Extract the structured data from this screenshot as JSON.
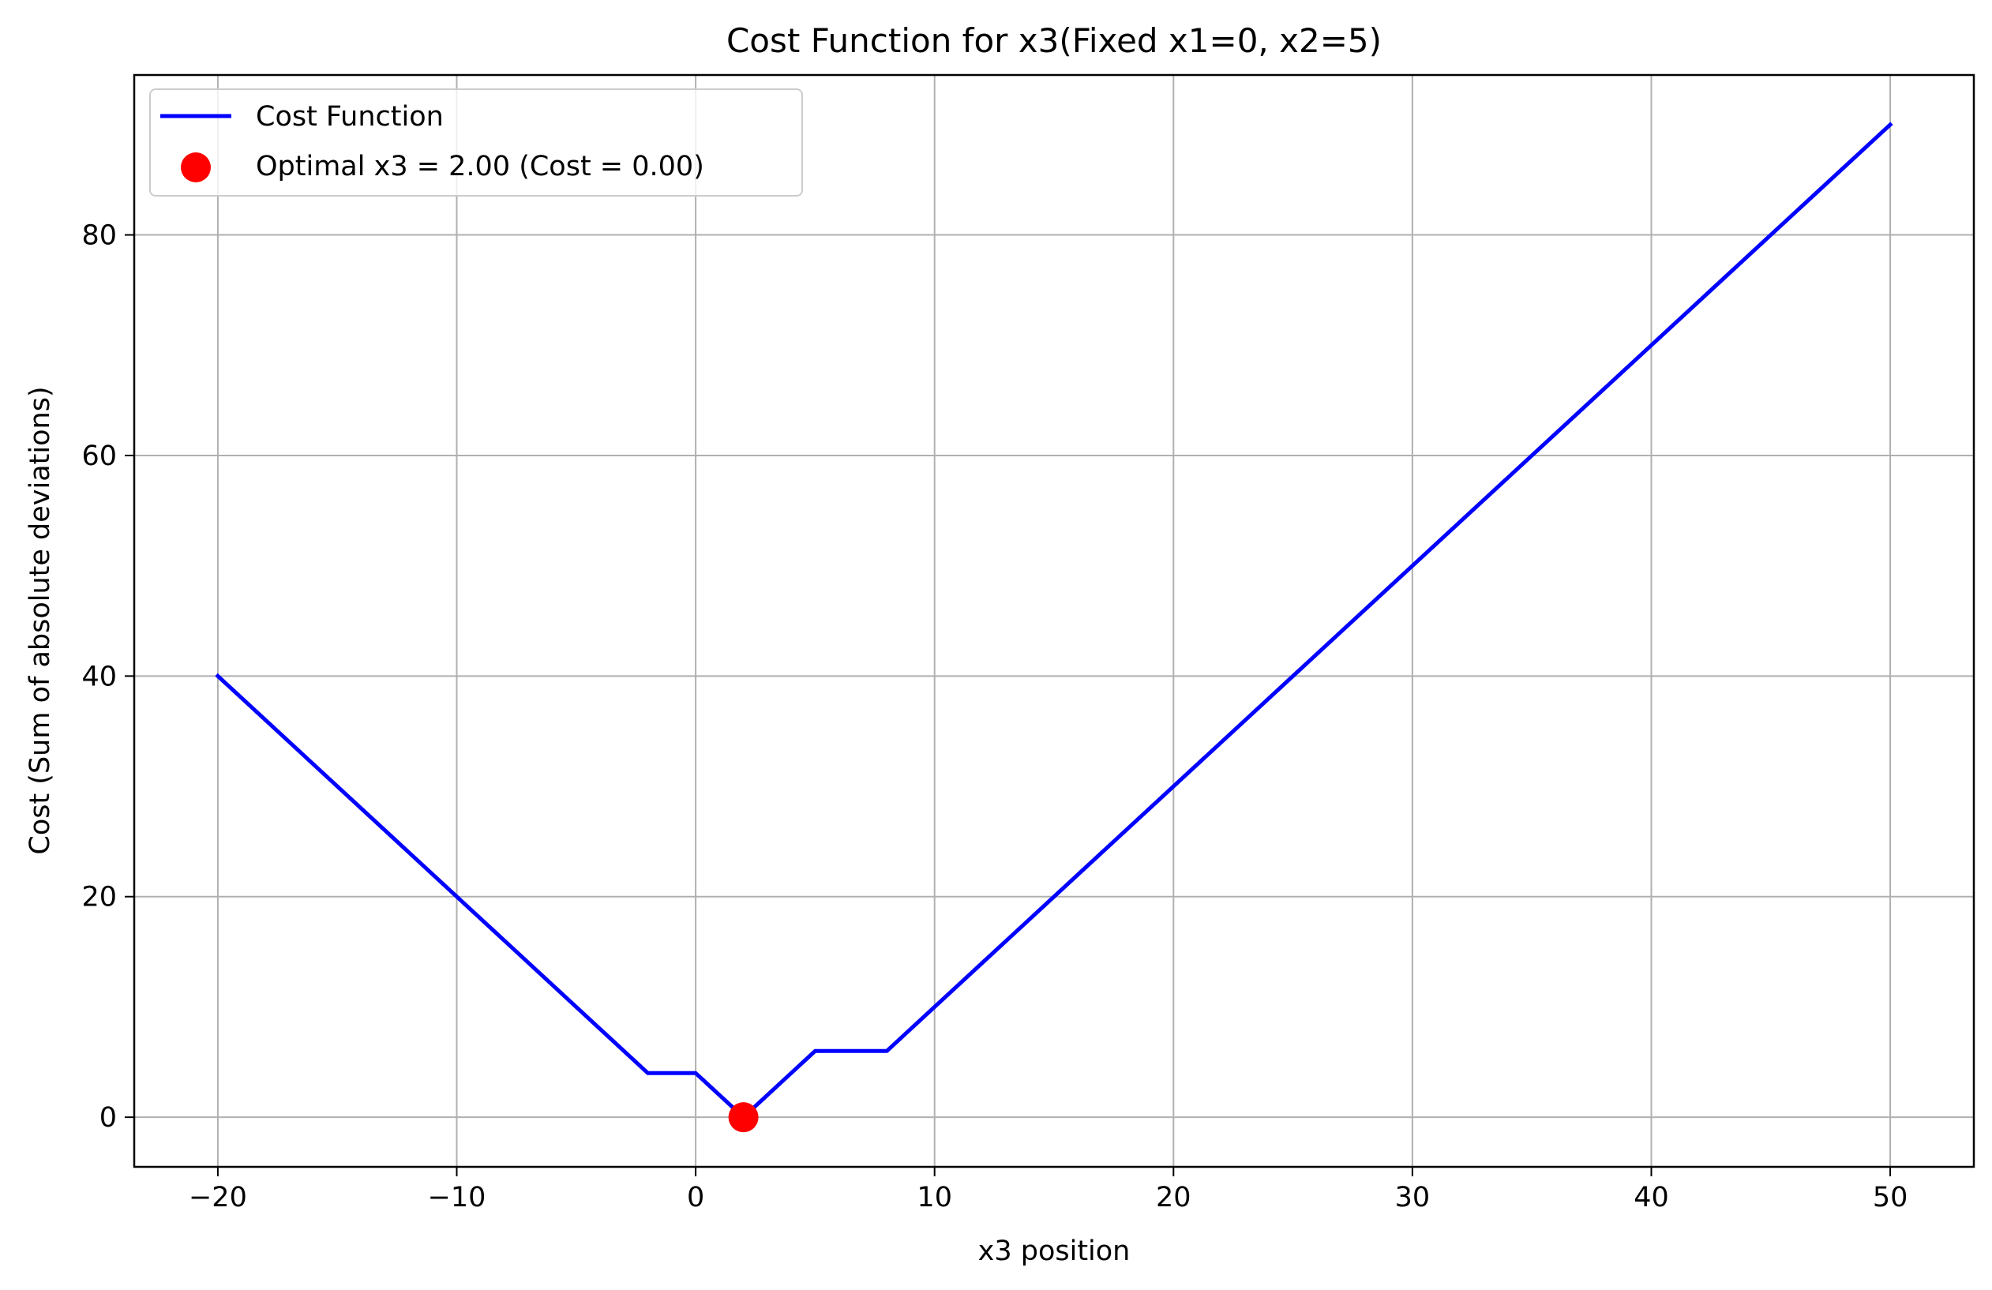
{
  "chart_data": {
    "type": "line",
    "title": "Cost Function for x3(Fixed x1=0, x2=5)",
    "xlabel": "x3 position",
    "ylabel": "Cost (Sum of absolute deviations)",
    "xlim": [
      -23.5,
      53.5
    ],
    "ylim": [
      -4.5,
      94.5
    ],
    "x_ticks": [
      -20,
      -10,
      0,
      10,
      20,
      30,
      40,
      50
    ],
    "x_tick_labels": [
      "−20",
      "−10",
      "0",
      "10",
      "20",
      "30",
      "40",
      "50"
    ],
    "y_ticks": [
      0,
      20,
      40,
      60,
      80
    ],
    "y_tick_labels": [
      "0",
      "20",
      "40",
      "60",
      "80"
    ],
    "grid": true,
    "legend_position": "top-left",
    "series": [
      {
        "name": "Cost Function",
        "color": "#0000ff",
        "x": [
          -20,
          -2,
          0,
          2,
          5,
          8,
          50
        ],
        "y": [
          40,
          4,
          4,
          0,
          6,
          6,
          90
        ]
      }
    ],
    "marker": {
      "name": "Optimal x3 = 2.00 (Cost = 0.00)",
      "color": "#ff0000",
      "x": 2,
      "y": 0
    }
  }
}
